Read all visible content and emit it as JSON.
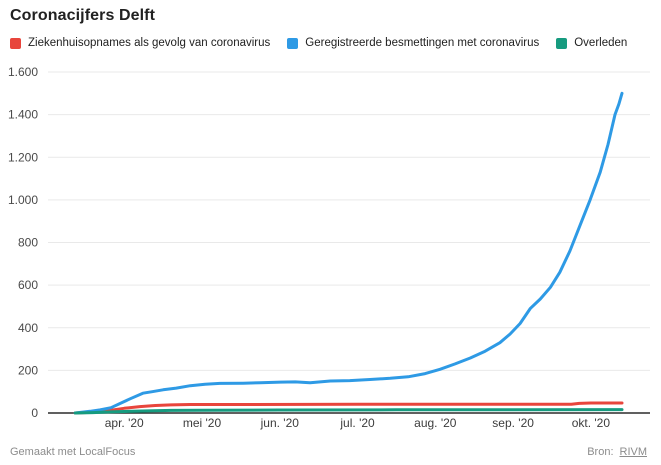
{
  "header": {
    "title": "Coronacijfers Delft"
  },
  "legend": {
    "items": [
      {
        "label": "Ziekenhuisopnames als gevolg van coronavirus",
        "color": "#e8453c"
      },
      {
        "label": "Geregistreerde besmettingen met coronavirus",
        "color": "#2e9ae5"
      },
      {
        "label": "Overleden",
        "color": "#169b7f"
      }
    ]
  },
  "footer": {
    "credit": "Gemaakt met LocalFocus",
    "source_label": "Bron:",
    "source_link": "RIVM"
  },
  "style": {
    "grid_color": "#e9e9e9",
    "axis_color": "#2b2b2b",
    "y_label_color": "#4a4a4a",
    "x_label_color": "#3c3c3c",
    "background": "#ffffff",
    "line_width": 3
  },
  "chart_data": {
    "type": "line",
    "title": "Coronacijfers Delft",
    "xlabel": "",
    "ylabel": "",
    "grid": true,
    "legend_position": "top",
    "x_axis": {
      "range": [
        -0.98,
        6.76
      ],
      "unit": "months, 0 = apr. '20 tick",
      "ticks": [
        {
          "x": 0,
          "label": "apr. '20"
        },
        {
          "x": 1,
          "label": "mei '20"
        },
        {
          "x": 2,
          "label": "jun. '20"
        },
        {
          "x": 3,
          "label": "jul. '20"
        },
        {
          "x": 4,
          "label": "aug. '20"
        },
        {
          "x": 5,
          "label": "sep. '20"
        },
        {
          "x": 6,
          "label": "okt. '20"
        }
      ]
    },
    "y_axis": {
      "range": [
        0,
        1600
      ],
      "ticks": [
        {
          "v": 0,
          "label": "0"
        },
        {
          "v": 200,
          "label": "200"
        },
        {
          "v": 400,
          "label": "400"
        },
        {
          "v": 600,
          "label": "600"
        },
        {
          "v": 800,
          "label": "800"
        },
        {
          "v": 1000,
          "label": "1.000"
        },
        {
          "v": 1200,
          "label": "1.200"
        },
        {
          "v": 1400,
          "label": "1.400"
        },
        {
          "v": 1600,
          "label": "1.600"
        }
      ]
    },
    "series": [
      {
        "name": "Ziekenhuisopnames als gevolg van coronavirus",
        "color": "#e8453c",
        "points": [
          [
            -0.63,
            0
          ],
          [
            -0.45,
            3
          ],
          [
            -0.3,
            8
          ],
          [
            -0.17,
            13
          ],
          [
            0,
            22
          ],
          [
            0.2,
            30
          ],
          [
            0.4,
            35
          ],
          [
            0.6,
            38
          ],
          [
            0.85,
            40
          ],
          [
            1.5,
            40
          ],
          [
            3,
            41
          ],
          [
            4.5,
            41
          ],
          [
            5.6,
            41
          ],
          [
            5.75,
            41
          ],
          [
            5.85,
            45
          ],
          [
            6.0,
            47
          ],
          [
            6.4,
            47
          ]
        ]
      },
      {
        "name": "Geregistreerde besmettingen met coronavirus",
        "color": "#2e9ae5",
        "points": [
          [
            -0.63,
            0
          ],
          [
            -0.44,
            8
          ],
          [
            -0.31,
            15
          ],
          [
            -0.17,
            25
          ],
          [
            -0.05,
            45
          ],
          [
            0.08,
            67
          ],
          [
            0.24,
            93
          ],
          [
            0.36,
            100
          ],
          [
            0.5,
            109
          ],
          [
            0.67,
            117
          ],
          [
            0.85,
            128
          ],
          [
            1.04,
            135
          ],
          [
            1.23,
            139
          ],
          [
            1.53,
            140
          ],
          [
            1.75,
            142
          ],
          [
            2.01,
            145
          ],
          [
            2.2,
            146
          ],
          [
            2.39,
            142
          ],
          [
            2.65,
            150
          ],
          [
            2.9,
            152
          ],
          [
            3.16,
            157
          ],
          [
            3.42,
            163
          ],
          [
            3.65,
            170
          ],
          [
            3.87,
            185
          ],
          [
            4.06,
            205
          ],
          [
            4.25,
            230
          ],
          [
            4.45,
            258
          ],
          [
            4.64,
            290
          ],
          [
            4.83,
            330
          ],
          [
            4.96,
            370
          ],
          [
            5.09,
            420
          ],
          [
            5.22,
            490
          ],
          [
            5.35,
            535
          ],
          [
            5.48,
            590
          ],
          [
            5.6,
            660
          ],
          [
            5.73,
            760
          ],
          [
            5.86,
            880
          ],
          [
            5.99,
            1000
          ],
          [
            6.12,
            1130
          ],
          [
            6.22,
            1260
          ],
          [
            6.31,
            1400
          ],
          [
            6.36,
            1450
          ],
          [
            6.4,
            1500
          ]
        ]
      },
      {
        "name": "Overleden",
        "color": "#169b7f",
        "points": [
          [
            -0.63,
            0
          ],
          [
            -0.4,
            2
          ],
          [
            -0.17,
            5
          ],
          [
            0,
            7
          ],
          [
            0.3,
            10
          ],
          [
            0.6,
            12
          ],
          [
            1,
            13
          ],
          [
            2,
            14
          ],
          [
            3.5,
            15
          ],
          [
            5,
            15
          ],
          [
            6.4,
            16
          ]
        ]
      }
    ]
  }
}
